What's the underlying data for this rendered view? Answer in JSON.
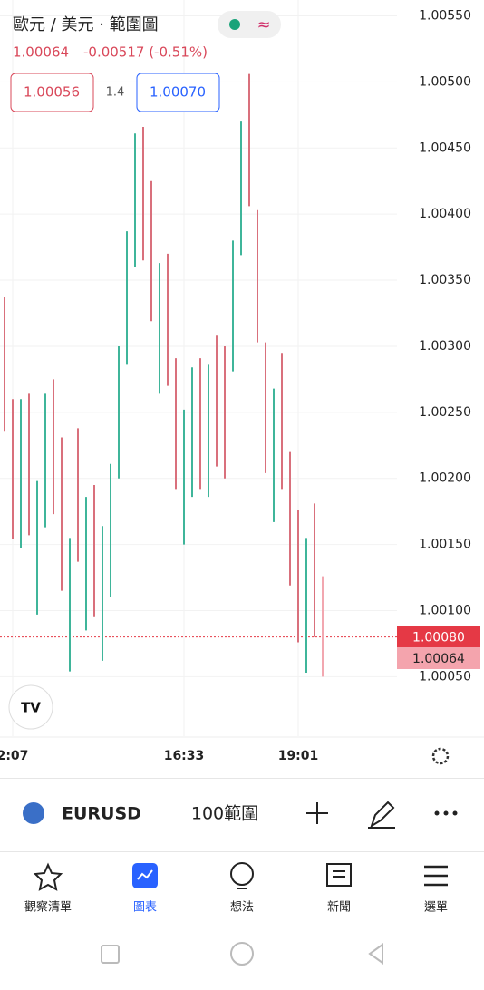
{
  "header": {
    "title": "歐元 / 美元 · 範圍圖",
    "price": "1.00064",
    "change": "-0.00517 (-0.51%)",
    "bid": "1.00056",
    "spread": "1.4",
    "ask": "1.00070"
  },
  "chart_data": {
    "type": "range-bar",
    "categories": [
      null,
      "2:07",
      null,
      null,
      null,
      null,
      null,
      null,
      null,
      null,
      null,
      null,
      null,
      null,
      null,
      null,
      null,
      null,
      null,
      null,
      null,
      null,
      "16:33",
      null,
      null,
      null,
      null,
      null,
      null,
      null,
      null,
      null,
      null,
      null,
      null,
      null,
      "19:01",
      null,
      null,
      null
    ],
    "highs": [
      1.00337,
      1.0026,
      1.0026,
      1.00264,
      1.00198,
      1.00264,
      1.00275,
      1.00231,
      1.00155,
      1.00238,
      1.00186,
      1.00195,
      1.00164,
      1.00211,
      1.003,
      1.00387,
      1.00461,
      1.00466,
      1.00425,
      1.00363,
      1.0037,
      1.00291,
      1.00252,
      1.00284,
      1.00291,
      1.00286,
      1.00308,
      1.003,
      1.0038,
      1.0047,
      1.00506,
      1.00403,
      1.00303,
      1.00268,
      1.00295,
      1.0022,
      1.00176,
      1.00155,
      1.00181,
      1.00126
    ],
    "lows": [
      1.00236,
      1.00154,
      1.00147,
      1.00157,
      1.00097,
      1.00163,
      1.00173,
      1.00115,
      1.00054,
      1.00137,
      1.00085,
      1.00095,
      1.00062,
      1.0011,
      1.002,
      1.00286,
      1.0036,
      1.00365,
      1.00319,
      1.00264,
      1.0027,
      1.00192,
      1.0015,
      1.00186,
      1.00192,
      1.00186,
      1.00209,
      1.002,
      1.00281,
      1.00369,
      1.00406,
      1.00303,
      1.00204,
      1.00167,
      1.00192,
      1.00119,
      1.00076,
      1.00053,
      1.0008,
      1.0005
    ],
    "colors": [
      "#d9707c",
      "#d9707c",
      "#3fb59a",
      "#d9707c",
      "#3fb59a",
      "#3fb59a",
      "#d9707c",
      "#d9707c",
      "#3fb59a",
      "#d9707c",
      "#3fb59a",
      "#d9707c",
      "#3fb59a",
      "#3fb59a",
      "#3fb59a",
      "#3fb59a",
      "#3fb59a",
      "#d9707c",
      "#d9707c",
      "#3fb59a",
      "#d9707c",
      "#d9707c",
      "#3fb59a",
      "#3fb59a",
      "#d9707c",
      "#3fb59a",
      "#d9707c",
      "#d9707c",
      "#3fb59a",
      "#3fb59a",
      "#d9707c",
      "#d9707c",
      "#d9707c",
      "#3fb59a",
      "#d9707c",
      "#d9707c",
      "#d9707c",
      "#3fb59a",
      "#d9707c",
      "#f2a7b0"
    ],
    "ylim": [
      1.00005,
      1.00562
    ],
    "yticks": [
      {
        "value": 1.0055,
        "label": "1.00550"
      },
      {
        "value": 1.005,
        "label": "1.00500"
      },
      {
        "value": 1.0045,
        "label": "1.00450"
      },
      {
        "value": 1.004,
        "label": "1.00400"
      },
      {
        "value": 1.0035,
        "label": "1.00350"
      },
      {
        "value": 1.003,
        "label": "1.00300"
      },
      {
        "value": 1.0025,
        "label": "1.00250"
      },
      {
        "value": 1.002,
        "label": "1.00200"
      },
      {
        "value": 1.0015,
        "label": "1.00150"
      },
      {
        "value": 1.001,
        "label": "1.00100"
      },
      {
        "value": 1.0005,
        "label": "1.00050"
      }
    ],
    "price_lines": [
      {
        "value": 1.0008,
        "label": "1.00080",
        "color": "#e53945"
      },
      {
        "value": 1.00064,
        "label": "1.00064",
        "color": "#f4a4ad"
      }
    ],
    "grid": true
  },
  "toolbar": {
    "symbol": "EURUSD",
    "interval": "100範圍"
  },
  "nav": [
    {
      "label": "觀察清單"
    },
    {
      "label": "圖表"
    },
    {
      "label": "想法"
    },
    {
      "label": "新聞"
    },
    {
      "label": "選單"
    }
  ]
}
